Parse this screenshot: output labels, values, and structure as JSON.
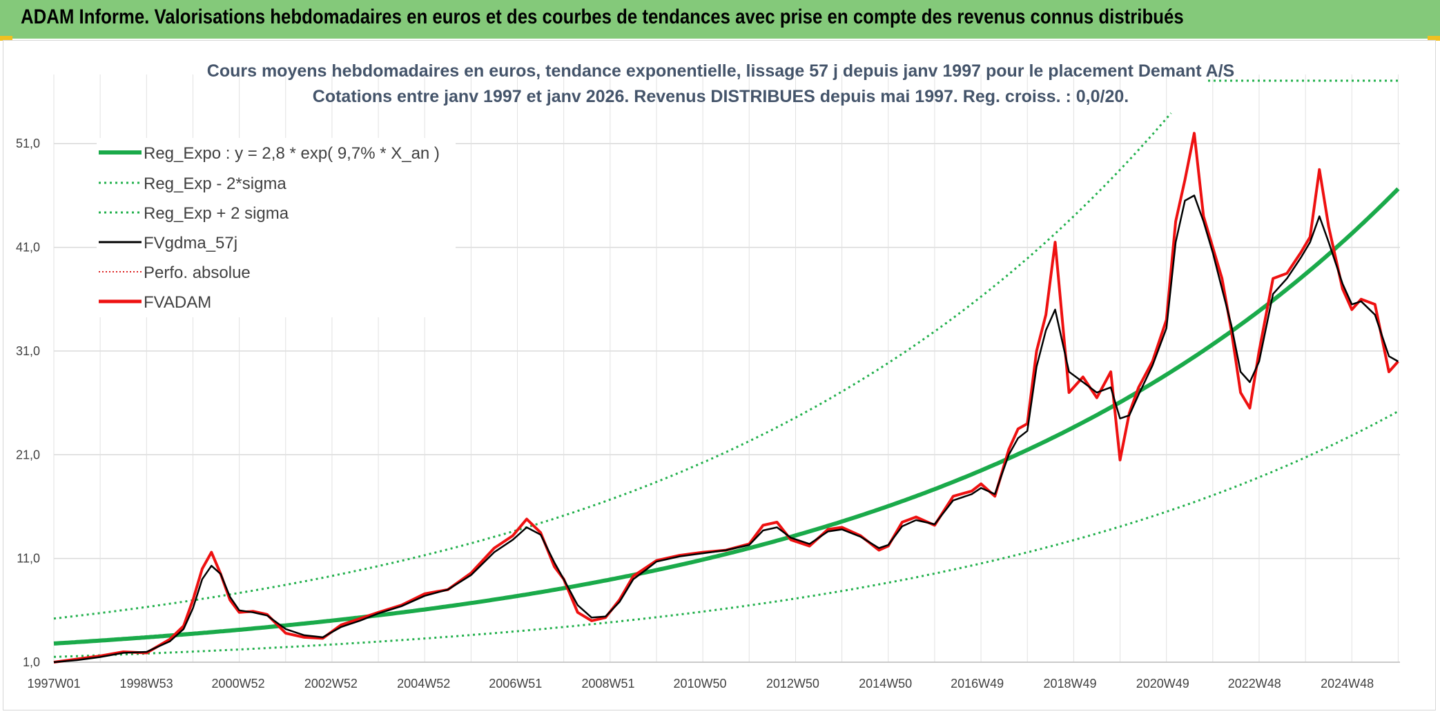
{
  "header": {
    "title": "ADAM Informe. Valorisations hebdomadaires en euros et des courbes de tendances avec prise en compte des revenus connus distribués"
  },
  "colors": {
    "header_bg": "#84c97a",
    "trend": "#1aaa4a",
    "band": "#22b04c",
    "smooth": "#000000",
    "series": "#ee1111",
    "perfo": "#dd2222"
  },
  "chart_data": {
    "type": "line",
    "title": "Cours moyens hebdomadaires en euros, tendance exponentielle, lissage 57 j depuis janv 1997 pour le placement Demant A/S",
    "subtitle": "Cotations entre janv 1997 et janv 2026. Revenus DISTRIBUES depuis mai 1997. Reg. croiss. : 0,0/20.",
    "xlabel": "",
    "ylabel": "",
    "x_start": "1997W01",
    "x_end": "2026W03",
    "ylim": [
      1,
      57
    ],
    "y_ticks": [
      "1,0",
      "11,0",
      "21,0",
      "31,0",
      "41,0",
      "51,0"
    ],
    "x_ticks": [
      "1997W01",
      "1998W53",
      "2000W52",
      "2002W52",
      "2004W52",
      "2006W51",
      "2008W51",
      "2010W50",
      "2012W50",
      "2014W50",
      "2016W49",
      "2018W49",
      "2020W49",
      "2022W48",
      "2024W48"
    ],
    "grid": true,
    "legend_position": "top-left",
    "legend": [
      "Reg_Expo : y = 2,8 * exp( 9,7% *  X_an )",
      "Reg_Exp - 2*sigma",
      "Reg_Exp + 2 sigma",
      "FVgdma_57j",
      "Perfo. absolue",
      "FVADAM"
    ],
    "regression": {
      "a": 2.8,
      "rate": 0.097,
      "upper_factor": 1.86,
      "lower_factor": 0.54
    },
    "series": [
      {
        "name": "FVADAM",
        "x": [
          1997.0,
          1997.5,
          1998.0,
          1998.5,
          1999.0,
          1999.5,
          1999.8,
          2000.0,
          2000.2,
          2000.4,
          2000.6,
          2000.8,
          2001.0,
          2001.3,
          2001.6,
          2002.0,
          2002.4,
          2002.8,
          2003.2,
          2003.6,
          2004.0,
          2004.5,
          2005.0,
          2005.5,
          2006.0,
          2006.5,
          2006.9,
          2007.2,
          2007.5,
          2007.8,
          2008.0,
          2008.3,
          2008.6,
          2008.9,
          2009.2,
          2009.5,
          2009.8,
          2010.0,
          2010.5,
          2011.0,
          2011.5,
          2012.0,
          2012.3,
          2012.6,
          2012.9,
          2013.3,
          2013.7,
          2014.0,
          2014.4,
          2014.8,
          2015.0,
          2015.3,
          2015.6,
          2016.0,
          2016.4,
          2016.8,
          2017.0,
          2017.3,
          2017.6,
          2017.8,
          2018.0,
          2018.2,
          2018.4,
          2018.6,
          2018.9,
          2019.2,
          2019.5,
          2019.8,
          2020.0,
          2020.2,
          2020.4,
          2020.7,
          2021.0,
          2021.2,
          2021.4,
          2021.6,
          2021.8,
          2022.0,
          2022.2,
          2022.4,
          2022.6,
          2022.8,
          2023.0,
          2023.3,
          2023.6,
          2023.9,
          2024.1,
          2024.3,
          2024.5,
          2024.8,
          2025.0,
          2025.2,
          2025.5,
          2025.8,
          2026.0
        ],
        "values": [
          1.0,
          1.3,
          1.6,
          2.0,
          1.9,
          3.2,
          4.5,
          7.0,
          10.0,
          11.6,
          9.5,
          7.0,
          5.8,
          5.9,
          5.6,
          3.8,
          3.4,
          3.3,
          4.6,
          5.2,
          5.8,
          6.5,
          7.6,
          8.0,
          9.6,
          12.0,
          13.2,
          14.8,
          13.5,
          10.2,
          9.0,
          5.8,
          5.0,
          5.3,
          7.0,
          9.3,
          10.2,
          10.8,
          11.3,
          11.6,
          11.8,
          12.4,
          14.2,
          14.5,
          12.8,
          12.2,
          13.8,
          14.0,
          13.2,
          11.8,
          12.2,
          14.5,
          15.0,
          14.2,
          17.0,
          17.5,
          18.2,
          17.0,
          21.5,
          23.5,
          24.0,
          31.0,
          34.5,
          41.5,
          27.0,
          28.5,
          26.5,
          29.0,
          20.5,
          25.0,
          27.5,
          30.0,
          34.0,
          43.5,
          47.5,
          52.0,
          44.0,
          41.0,
          38.0,
          33.0,
          27.0,
          25.5,
          31.0,
          38.0,
          38.5,
          40.5,
          42.0,
          48.5,
          43.0,
          37.0,
          35.0,
          36.0,
          35.5,
          29.0,
          30.0
        ]
      },
      {
        "name": "FVgdma_57j",
        "x": [
          1997.0,
          1997.5,
          1998.0,
          1998.5,
          1999.0,
          1999.5,
          1999.8,
          2000.0,
          2000.2,
          2000.4,
          2000.6,
          2000.8,
          2001.0,
          2001.3,
          2001.6,
          2002.0,
          2002.4,
          2002.8,
          2003.2,
          2003.6,
          2004.0,
          2004.5,
          2005.0,
          2005.5,
          2006.0,
          2006.5,
          2006.9,
          2007.2,
          2007.5,
          2007.8,
          2008.0,
          2008.3,
          2008.6,
          2008.9,
          2009.2,
          2009.5,
          2009.8,
          2010.0,
          2010.5,
          2011.0,
          2011.5,
          2012.0,
          2012.3,
          2012.6,
          2012.9,
          2013.3,
          2013.7,
          2014.0,
          2014.4,
          2014.8,
          2015.0,
          2015.3,
          2015.6,
          2016.0,
          2016.4,
          2016.8,
          2017.0,
          2017.3,
          2017.6,
          2017.8,
          2018.0,
          2018.2,
          2018.4,
          2018.6,
          2018.9,
          2019.2,
          2019.5,
          2019.8,
          2020.0,
          2020.2,
          2020.4,
          2020.7,
          2021.0,
          2021.2,
          2021.4,
          2021.6,
          2021.8,
          2022.0,
          2022.2,
          2022.4,
          2022.6,
          2022.8,
          2023.0,
          2023.3,
          2023.6,
          2023.9,
          2024.1,
          2024.3,
          2024.5,
          2024.8,
          2025.0,
          2025.2,
          2025.5,
          2025.8,
          2026.0
        ],
        "values": [
          1.0,
          1.2,
          1.5,
          1.9,
          2.0,
          3.0,
          4.2,
          6.2,
          9.0,
          10.3,
          9.5,
          7.3,
          6.0,
          5.8,
          5.5,
          4.2,
          3.6,
          3.4,
          4.4,
          5.0,
          5.7,
          6.4,
          7.4,
          8.0,
          9.4,
          11.6,
          12.8,
          14.0,
          13.3,
          10.6,
          9.0,
          6.5,
          5.3,
          5.4,
          6.8,
          9.0,
          10.0,
          10.7,
          11.2,
          11.5,
          11.8,
          12.3,
          13.7,
          14.0,
          13.0,
          12.4,
          13.6,
          13.8,
          13.1,
          12.0,
          12.3,
          14.1,
          14.7,
          14.3,
          16.6,
          17.2,
          17.8,
          17.2,
          21.0,
          22.6,
          23.3,
          29.5,
          33.0,
          35.0,
          29.0,
          28.0,
          27.0,
          27.5,
          24.5,
          24.8,
          26.8,
          29.6,
          33.2,
          41.5,
          45.5,
          46.0,
          43.5,
          40.5,
          37.0,
          33.5,
          29.0,
          28.0,
          30.0,
          36.5,
          38.0,
          40.0,
          41.5,
          44.0,
          41.5,
          37.5,
          35.5,
          35.8,
          34.5,
          30.5,
          30.0
        ]
      }
    ]
  }
}
